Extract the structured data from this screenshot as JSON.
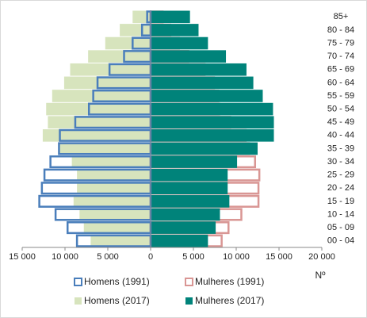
{
  "chart_data": {
    "type": "pyramid",
    "x_label": "Nº",
    "categories": [
      "00 - 04",
      "05 - 09",
      "10 - 14",
      "15 - 19",
      "20 - 24",
      "25 - 29",
      "30 - 34",
      "35 - 39",
      "40 - 44",
      "45 - 49",
      "50 - 54",
      "55 - 59",
      "60 - 64",
      "65 - 69",
      "70 - 74",
      "75 - 79",
      "80 - 84",
      "85+"
    ],
    "series": [
      {
        "name": "Homens (2017)",
        "color": "#d7e4bd",
        "fill": true,
        "values": [
          -7000,
          -7800,
          -8300,
          -9000,
          -8600,
          -8600,
          -9200,
          -10800,
          -12600,
          -12000,
          -12200,
          -11500,
          -10100,
          -9400,
          -7300,
          -5300,
          -3600,
          -2100
        ]
      },
      {
        "name": "Mulheres (1991)",
        "color": "#d99694",
        "fill": false,
        "values": [
          8300,
          9100,
          10600,
          12600,
          12600,
          12700,
          12200,
          11500,
          11100,
          9300,
          8000,
          7900,
          7400,
          6300,
          4400,
          3300,
          2300,
          1400
        ]
      },
      {
        "name": "Mulheres (2017)",
        "color": "#00837a",
        "fill": true,
        "values": [
          6700,
          7600,
          8100,
          9200,
          9000,
          9000,
          10100,
          12500,
          14400,
          14400,
          14300,
          13100,
          12000,
          11200,
          8800,
          6700,
          5600,
          4600
        ]
      },
      {
        "name": "Homens (1991)",
        "color": "#4a7ebb",
        "fill": false,
        "values": [
          -8600,
          -9700,
          -11100,
          -13000,
          -12700,
          -12400,
          -11700,
          -10700,
          -10600,
          -8800,
          -7200,
          -6700,
          -6200,
          -4800,
          -3100,
          -2100,
          -1000,
          -400
        ]
      }
    ],
    "legend_order": [
      3,
      1,
      0,
      2
    ],
    "xlim": [
      -15000,
      20000
    ],
    "xticks": [
      {
        "value": -15000,
        "label": "15 000"
      },
      {
        "value": -10000,
        "label": "10 000"
      },
      {
        "value": -5000,
        "label": "5 000"
      },
      0,
      {
        "value": 5000,
        "label": "5 000"
      },
      {
        "value": 10000,
        "label": "10 000"
      },
      {
        "value": 15000,
        "label": "15 000"
      },
      {
        "value": 20000,
        "label": "20 000"
      }
    ],
    "grid": false
  }
}
